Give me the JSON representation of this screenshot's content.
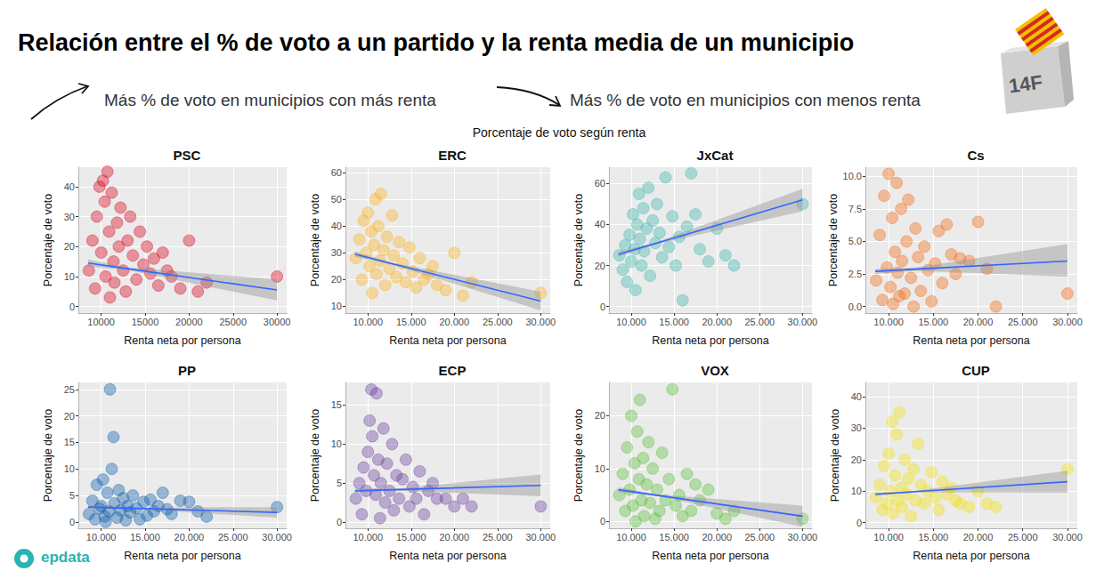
{
  "header": {
    "title": "Relación entre el % de voto a un partido y la renta media de un municipio",
    "annotations": [
      "Más % de voto en municipios con más renta",
      "Más % de voto en municipios con menos renta"
    ],
    "subtitle": "Porcentaje de voto según renta",
    "badge": "14F",
    "source": "epdata"
  },
  "chart_data": [
    {
      "type": "scatter",
      "title": "PSC",
      "x_label": "Renta neta por persona",
      "y_label": "Porcentaje de voto",
      "color": "#d9001b",
      "marker": "circle",
      "grid": true,
      "xlim": [
        7400,
        31100
      ],
      "xticks": [
        10000,
        15000,
        20000,
        25000,
        30000
      ],
      "ylim": [
        -2.2,
        46.5
      ],
      "yticks": [
        0,
        10,
        20,
        30,
        40
      ],
      "x": [
        8600,
        9000,
        9300,
        9500,
        9800,
        10000,
        10200,
        10400,
        10500,
        10700,
        10900,
        11000,
        11200,
        11400,
        11500,
        11800,
        12000,
        12200,
        12500,
        12800,
        13000,
        13300,
        13600,
        14000,
        14400,
        14800,
        15200,
        15600,
        16000,
        16500,
        17000,
        17500,
        18000,
        19000,
        20000,
        21000,
        22000,
        30000
      ],
      "values": [
        12,
        22,
        6,
        30,
        40,
        18,
        42,
        35,
        10,
        45,
        25,
        3,
        38,
        15,
        8,
        28,
        20,
        33,
        12,
        5,
        22,
        30,
        17,
        9,
        25,
        14,
        20,
        11,
        16,
        7,
        18,
        12,
        10,
        6,
        22,
        5,
        8,
        10
      ],
      "trend": {
        "x": [
          8500,
          13000,
          30000
        ],
        "values": [
          14.5,
          12.6,
          5.5
        ],
        "lower": [
          13.3,
          12.1,
          2.0
        ],
        "upper": [
          15.7,
          13.1,
          9.0
        ],
        "color": "#3366ff"
      }
    },
    {
      "type": "scatter",
      "title": "ERC",
      "x_label": "Renta neta por persona",
      "y_label": "Porcentaje de voto",
      "color": "#fbb21f",
      "marker": "circle",
      "grid": true,
      "xlim": [
        7400,
        31100
      ],
      "xticks": [
        {
          "value": 10000,
          "label": "10.000"
        },
        {
          "value": 15000,
          "label": "15.000"
        },
        {
          "value": 20000,
          "label": "20.000"
        },
        {
          "value": 25000,
          "label": "25.000"
        },
        {
          "value": 30000,
          "label": "30.000"
        }
      ],
      "ylim": [
        7.5,
        62
      ],
      "yticks": [
        10,
        20,
        30,
        40,
        50,
        60
      ],
      "x": [
        8600,
        9000,
        9300,
        9500,
        9800,
        10000,
        10200,
        10400,
        10500,
        10700,
        10900,
        11000,
        11200,
        11400,
        11500,
        11800,
        12000,
        12200,
        12500,
        12800,
        13000,
        13300,
        13600,
        14000,
        14400,
        14800,
        15200,
        15600,
        16000,
        16500,
        17000,
        17500,
        18000,
        19000,
        20000,
        21000,
        22000,
        30000
      ],
      "values": [
        28,
        35,
        20,
        42,
        30,
        45,
        25,
        38,
        15,
        33,
        50,
        22,
        40,
        27,
        52,
        31,
        18,
        36,
        24,
        44,
        29,
        21,
        34,
        26,
        19,
        32,
        23,
        17,
        28,
        20,
        22,
        25,
        18,
        16,
        30,
        14,
        19,
        15
      ],
      "trend": {
        "x": [
          8500,
          13000,
          30000
        ],
        "values": [
          29.5,
          25.8,
          12.0
        ],
        "lower": [
          28.5,
          25.4,
          8.5
        ],
        "upper": [
          30.5,
          26.2,
          15.5
        ],
        "color": "#3366ff"
      }
    },
    {
      "type": "scatter",
      "title": "JxCat",
      "x_label": "Renta neta por persona",
      "y_label": "Porcentaje de voto",
      "color": "#3cb8ad",
      "marker": "circle",
      "grid": true,
      "xlim": [
        7400,
        31100
      ],
      "xticks": [
        {
          "value": 10000,
          "label": "10.000"
        },
        {
          "value": 15000,
          "label": "15.000"
        },
        {
          "value": 20000,
          "label": "20.000"
        },
        {
          "value": 25000,
          "label": "25.000"
        },
        {
          "value": 30000,
          "label": "30.000"
        }
      ],
      "ylim": [
        -3.2,
        68
      ],
      "yticks": [
        0,
        20,
        40,
        60
      ],
      "x": [
        8600,
        9000,
        9300,
        9500,
        9800,
        10000,
        10200,
        10400,
        10500,
        10700,
        10900,
        11000,
        11200,
        11400,
        11500,
        11800,
        12000,
        12200,
        12500,
        12800,
        13000,
        13300,
        13600,
        14000,
        14400,
        14800,
        15200,
        15600,
        16000,
        16500,
        17000,
        17500,
        18000,
        19000,
        20000,
        21000,
        22000,
        30000
      ],
      "values": [
        25,
        18,
        30,
        12,
        35,
        22,
        45,
        28,
        8,
        40,
        55,
        33,
        20,
        48,
        27,
        38,
        58,
        15,
        42,
        31,
        50,
        36,
        24,
        63,
        29,
        44,
        20,
        34,
        3,
        39,
        65,
        45,
        28,
        22,
        38,
        25,
        20,
        50
      ],
      "trend": {
        "x": [
          8500,
          13000,
          30000
        ],
        "values": [
          25.5,
          31.0,
          52.0
        ],
        "lower": [
          24.3,
          30.5,
          46.5
        ],
        "upper": [
          26.7,
          31.5,
          57.5
        ],
        "color": "#3366ff"
      }
    },
    {
      "type": "scatter",
      "title": "Cs",
      "x_label": "Renta neta por persona",
      "y_label": "Porcentaje de voto",
      "color": "#f46a10",
      "marker": "circle",
      "grid": true,
      "xlim": [
        7400,
        31100
      ],
      "xticks": [
        {
          "value": 10000,
          "label": "10.000"
        },
        {
          "value": 15000,
          "label": "15.000"
        },
        {
          "value": 20000,
          "label": "20.000"
        },
        {
          "value": 25000,
          "label": "25.000"
        },
        {
          "value": 30000,
          "label": "30.000"
        }
      ],
      "ylim": [
        -0.5,
        10.7
      ],
      "yticks": [
        {
          "value": 0,
          "label": "0.0"
        },
        2.5,
        {
          "value": 5,
          "label": "5.0"
        },
        7.5,
        {
          "value": 10,
          "label": "10.0"
        }
      ],
      "x": [
        8600,
        9000,
        9300,
        9500,
        9800,
        10000,
        10200,
        10400,
        10500,
        10700,
        10900,
        11000,
        11200,
        11400,
        11500,
        11800,
        12000,
        12200,
        12500,
        12800,
        13000,
        13300,
        13600,
        14000,
        14400,
        14800,
        15200,
        15600,
        16000,
        16500,
        17000,
        17500,
        18000,
        19000,
        20000,
        21000,
        22000,
        30000
      ],
      "values": [
        2.0,
        5.5,
        0.5,
        8.5,
        3.0,
        10.2,
        1.5,
        6.8,
        0.2,
        4.2,
        9.5,
        2.6,
        0.8,
        7.5,
        3.5,
        1.0,
        5.0,
        8.2,
        2.2,
        0.0,
        6.0,
        3.8,
        1.2,
        4.6,
        2.8,
        0.4,
        3.3,
        5.8,
        1.8,
        6.3,
        4.0,
        2.5,
        3.7,
        3.5,
        6.5,
        2.9,
        0.0,
        1.0
      ],
      "trend": {
        "x": [
          8500,
          13000,
          30000
        ],
        "values": [
          2.7,
          2.87,
          3.5
        ],
        "lower": [
          2.5,
          2.75,
          2.3
        ],
        "upper": [
          2.9,
          3.0,
          4.8
        ],
        "color": "#3366ff"
      }
    },
    {
      "type": "scatter",
      "title": "PP",
      "x_label": "Renta neta por persona",
      "y_label": "Porcentaje de voto",
      "color": "#0a5bab",
      "marker": "circle",
      "grid": true,
      "xlim": [
        7400,
        31100
      ],
      "xticks": [
        {
          "value": 10000,
          "label": "10.000"
        },
        {
          "value": 15000,
          "label": "15.000"
        },
        {
          "value": 20000,
          "label": "20.000"
        },
        {
          "value": 25000,
          "label": "25.000"
        },
        {
          "value": 30000,
          "label": "30.000"
        }
      ],
      "ylim": [
        -1.2,
        26.3
      ],
      "yticks": [
        0,
        5,
        10,
        15,
        20,
        25
      ],
      "x": [
        8600,
        9000,
        9300,
        9500,
        9800,
        10000,
        10200,
        10400,
        10500,
        10700,
        10900,
        11000,
        11200,
        11400,
        11500,
        11800,
        12000,
        12200,
        12500,
        12800,
        13000,
        13300,
        13600,
        14000,
        14400,
        14800,
        15200,
        15600,
        16000,
        16500,
        17000,
        17500,
        18000,
        19000,
        20000,
        21000,
        22000,
        30000
      ],
      "values": [
        1.5,
        4,
        0.5,
        7,
        2.5,
        3,
        8,
        1,
        0,
        5.5,
        2,
        25,
        10,
        16,
        3.5,
        0.8,
        6,
        2.2,
        4.5,
        0.3,
        3,
        1.8,
        5,
        2.6,
        0.5,
        3.8,
        1.2,
        4.2,
        2,
        3,
        5.5,
        2.4,
        1.5,
        4,
        3.8,
        2,
        1,
        2.8
      ],
      "trend": {
        "x": [
          8500,
          13000,
          30000
        ],
        "values": [
          2.8,
          2.59,
          1.8
        ],
        "lower": [
          2.5,
          2.5,
          0.8
        ],
        "upper": [
          3.1,
          2.7,
          2.8
        ],
        "color": "#3366ff"
      }
    },
    {
      "type": "scatter",
      "title": "ECP",
      "x_label": "Renta neta por persona",
      "y_label": "Porcentaje de voto",
      "color": "#6b3fa0",
      "marker": "circle",
      "grid": true,
      "xlim": [
        7400,
        31100
      ],
      "xticks": [
        {
          "value": 10000,
          "label": "10.000"
        },
        {
          "value": 15000,
          "label": "15.000"
        },
        {
          "value": 20000,
          "label": "20.000"
        },
        {
          "value": 25000,
          "label": "25.000"
        },
        {
          "value": 30000,
          "label": "30.000"
        }
      ],
      "ylim": [
        -0.8,
        17.9
      ],
      "yticks": [
        0,
        5,
        10,
        15
      ],
      "x": [
        8600,
        9000,
        9300,
        9500,
        9800,
        10000,
        10200,
        10400,
        10500,
        10700,
        10900,
        11000,
        11200,
        11400,
        11500,
        11800,
        12000,
        12200,
        12500,
        12800,
        13000,
        13300,
        13600,
        14000,
        14400,
        14800,
        15200,
        15600,
        16000,
        16500,
        17000,
        17500,
        18000,
        19000,
        20000,
        21000,
        22000,
        30000
      ],
      "values": [
        3,
        5,
        1,
        7,
        4,
        9,
        13,
        17,
        11,
        6,
        3.5,
        16.5,
        8,
        0.5,
        5,
        12,
        2.5,
        7.5,
        4,
        10,
        1.5,
        6,
        3,
        5.5,
        8,
        2,
        4.5,
        3,
        6.5,
        1,
        4,
        5,
        3,
        3,
        2,
        3,
        2,
        2
      ],
      "trend": {
        "x": [
          8500,
          13000,
          30000
        ],
        "values": [
          4.0,
          4.15,
          4.7
        ],
        "lower": [
          3.7,
          4.05,
          3.3
        ],
        "upper": [
          4.3,
          4.25,
          6.1
        ],
        "color": "#3366ff"
      }
    },
    {
      "type": "scatter",
      "title": "VOX",
      "x_label": "Renta neta por persona",
      "y_label": "Porcentaje de voto",
      "color": "#5ac13a",
      "marker": "circle",
      "grid": true,
      "xlim": [
        7400,
        31100
      ],
      "xticks": [
        {
          "value": 10000,
          "label": "10.000"
        },
        {
          "value": 15000,
          "label": "15.000"
        },
        {
          "value": 20000,
          "label": "20.000"
        },
        {
          "value": 25000,
          "label": "25.000"
        },
        {
          "value": 30000,
          "label": "30.000"
        }
      ],
      "ylim": [
        -1.3,
        26.3
      ],
      "yticks": [
        0,
        10,
        20
      ],
      "x": [
        8600,
        9000,
        9300,
        9500,
        9800,
        10000,
        10200,
        10400,
        10500,
        10700,
        10900,
        11000,
        11200,
        11400,
        11500,
        11800,
        12000,
        12200,
        12500,
        12800,
        13000,
        13300,
        13600,
        14000,
        14400,
        14800,
        15200,
        15600,
        16000,
        16500,
        17000,
        17500,
        18000,
        19000,
        20000,
        21000,
        22000,
        30000
      ],
      "values": [
        5,
        9,
        2,
        14,
        6,
        20,
        3,
        11,
        0,
        17,
        8,
        23,
        4,
        12,
        1,
        7,
        15,
        3.5,
        10,
        0.5,
        6,
        2,
        13,
        4,
        8,
        25,
        3,
        5,
        1,
        9,
        2,
        7,
        4,
        6,
        1.5,
        0.5,
        2,
        0.5
      ],
      "trend": {
        "x": [
          8500,
          13000,
          30000
        ],
        "values": [
          6.0,
          4.95,
          1.0
        ],
        "lower": [
          5.5,
          4.8,
          -1.0
        ],
        "upper": [
          6.5,
          5.1,
          3.0
        ],
        "color": "#3366ff"
      }
    },
    {
      "type": "scatter",
      "title": "CUP",
      "x_label": "Renta neta por persona",
      "y_label": "Porcentaje de voto",
      "color": "#f2e20c",
      "marker": "circle",
      "grid": true,
      "xlim": [
        7400,
        31100
      ],
      "xticks": [
        {
          "value": 10000,
          "label": "10.000"
        },
        {
          "value": 15000,
          "label": "15.000"
        },
        {
          "value": 20000,
          "label": "20.000"
        },
        {
          "value": 25000,
          "label": "25.000"
        },
        {
          "value": 30000,
          "label": "30.000"
        }
      ],
      "ylim": [
        -1.8,
        44.5
      ],
      "yticks": [
        0,
        10,
        20,
        30,
        40
      ],
      "x": [
        8600,
        9000,
        9300,
        9500,
        9800,
        10000,
        10200,
        10400,
        10500,
        10700,
        10900,
        11000,
        11200,
        11400,
        11500,
        11800,
        12000,
        12200,
        12500,
        12800,
        13000,
        13300,
        13600,
        14000,
        14400,
        14800,
        15200,
        15600,
        16000,
        16500,
        17000,
        17500,
        18000,
        19000,
        20000,
        21000,
        22000,
        30000
      ],
      "values": [
        8,
        12,
        4,
        18,
        6,
        22,
        10,
        32,
        3,
        15,
        28,
        7,
        35,
        11,
        5,
        20,
        9,
        14,
        2,
        17,
        7,
        25,
        12,
        6,
        10,
        16,
        8,
        4,
        13,
        9,
        11,
        7,
        6,
        5,
        10,
        6,
        5,
        17
      ],
      "trend": {
        "x": [
          8500,
          13000,
          30000
        ],
        "values": [
          9.0,
          9.84,
          13.0
        ],
        "lower": [
          8.5,
          9.6,
          9.5
        ],
        "upper": [
          9.5,
          10.1,
          16.5
        ],
        "color": "#3366ff"
      }
    }
  ]
}
